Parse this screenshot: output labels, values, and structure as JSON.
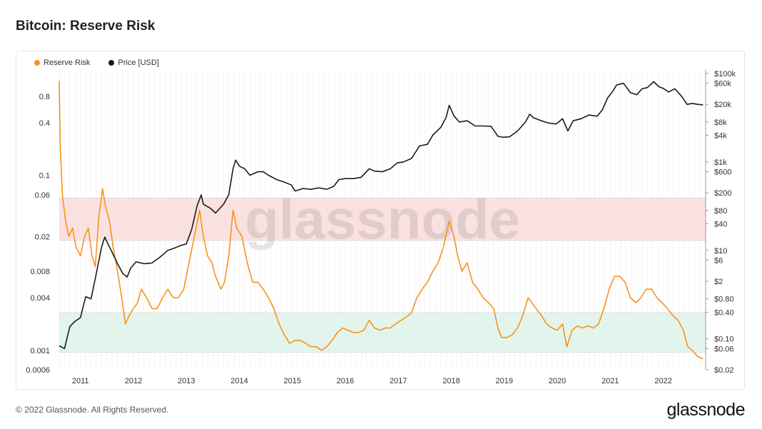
{
  "title": "Bitcoin: Reserve Risk",
  "footer": {
    "copyright": "© 2022 Glassnode. All Rights Reserved.",
    "logo_text": "glassnode"
  },
  "watermark": "glassnode",
  "colors": {
    "reserve_risk": "#f7931a",
    "price": "#1b1b1b",
    "red_band": "#fbe0e0",
    "green_band": "#e2f5ec",
    "grid": "#ececec"
  },
  "chart_data": {
    "type": "line",
    "title": "Bitcoin: Reserve Risk",
    "xlim": [
      2010.6,
      2022.8
    ],
    "x_ticks": [
      {
        "label": "2011",
        "x": 2011
      },
      {
        "label": "2012",
        "x": 2012
      },
      {
        "label": "2013",
        "x": 2013
      },
      {
        "label": "2014",
        "x": 2014
      },
      {
        "label": "2015",
        "x": 2015
      },
      {
        "label": "2016",
        "x": 2016
      },
      {
        "label": "2017",
        "x": 2017
      },
      {
        "label": "2018",
        "x": 2018
      },
      {
        "label": "2019",
        "x": 2019
      },
      {
        "label": "2020",
        "x": 2020
      },
      {
        "label": "2021",
        "x": 2021
      },
      {
        "label": "2022",
        "x": 2022
      }
    ],
    "left_axis": {
      "scale": "log",
      "ylim": [
        0.0006,
        1.6
      ],
      "ticks": [
        {
          "label": "0.8",
          "v": 0.8
        },
        {
          "label": "0.4",
          "v": 0.4
        },
        {
          "label": "0.1",
          "v": 0.1
        },
        {
          "label": "0.06",
          "v": 0.06
        },
        {
          "label": "0.02",
          "v": 0.02
        },
        {
          "label": "0.008",
          "v": 0.008
        },
        {
          "label": "0.004",
          "v": 0.004
        },
        {
          "label": "0.001",
          "v": 0.001
        },
        {
          "label": "0.0006",
          "v": 0.0006
        }
      ]
    },
    "right_axis": {
      "scale": "log",
      "ylim": [
        0.02,
        120000
      ],
      "ticks": [
        {
          "label": "$100k",
          "v": 100000
        },
        {
          "label": "$60k",
          "v": 60000
        },
        {
          "label": "$20k",
          "v": 20000
        },
        {
          "label": "$8k",
          "v": 8000
        },
        {
          "label": "$4k",
          "v": 4000
        },
        {
          "label": "$1k",
          "v": 1000
        },
        {
          "label": "$600",
          "v": 600
        },
        {
          "label": "$200",
          "v": 200
        },
        {
          "label": "$80",
          "v": 80
        },
        {
          "label": "$40",
          "v": 40
        },
        {
          "label": "$10",
          "v": 10
        },
        {
          "label": "$6",
          "v": 6
        },
        {
          "label": "$2",
          "v": 2
        },
        {
          "label": "$0.80",
          "v": 0.8
        },
        {
          "label": "$0.40",
          "v": 0.4
        },
        {
          "label": "$0.10",
          "v": 0.1
        },
        {
          "label": "$0.06",
          "v": 0.06
        },
        {
          "label": "$0.02",
          "v": 0.02
        }
      ]
    },
    "bands": [
      {
        "from": 0.018,
        "to": 0.055,
        "color": "red_band"
      },
      {
        "from": 0.00095,
        "to": 0.0027,
        "color": "green_band"
      }
    ],
    "legend": {
      "placement": "top-left"
    },
    "grid": true,
    "series": [
      {
        "name": "Reserve Risk",
        "axis": "left",
        "color": "#f7931a",
        "points": [
          [
            2010.6,
            1.2
          ],
          [
            2010.62,
            0.2
          ],
          [
            2010.66,
            0.06
          ],
          [
            2010.72,
            0.03
          ],
          [
            2010.78,
            0.02
          ],
          [
            2010.85,
            0.025
          ],
          [
            2010.92,
            0.015
          ],
          [
            2011.0,
            0.012
          ],
          [
            2011.08,
            0.02
          ],
          [
            2011.15,
            0.025
          ],
          [
            2011.22,
            0.012
          ],
          [
            2011.28,
            0.009
          ],
          [
            2011.35,
            0.035
          ],
          [
            2011.42,
            0.07
          ],
          [
            2011.47,
            0.045
          ],
          [
            2011.55,
            0.03
          ],
          [
            2011.62,
            0.015
          ],
          [
            2011.7,
            0.008
          ],
          [
            2011.78,
            0.004
          ],
          [
            2011.85,
            0.002
          ],
          [
            2011.92,
            0.0025
          ],
          [
            2012.0,
            0.003
          ],
          [
            2012.08,
            0.0035
          ],
          [
            2012.15,
            0.005
          ],
          [
            2012.25,
            0.004
          ],
          [
            2012.35,
            0.003
          ],
          [
            2012.45,
            0.003
          ],
          [
            2012.55,
            0.004
          ],
          [
            2012.65,
            0.005
          ],
          [
            2012.75,
            0.004
          ],
          [
            2012.85,
            0.004
          ],
          [
            2012.95,
            0.005
          ],
          [
            2013.05,
            0.01
          ],
          [
            2013.15,
            0.02
          ],
          [
            2013.25,
            0.04
          ],
          [
            2013.32,
            0.02
          ],
          [
            2013.4,
            0.012
          ],
          [
            2013.48,
            0.01
          ],
          [
            2013.55,
            0.007
          ],
          [
            2013.65,
            0.005
          ],
          [
            2013.72,
            0.006
          ],
          [
            2013.8,
            0.012
          ],
          [
            2013.88,
            0.04
          ],
          [
            2013.95,
            0.025
          ],
          [
            2014.05,
            0.02
          ],
          [
            2014.15,
            0.01
          ],
          [
            2014.25,
            0.006
          ],
          [
            2014.35,
            0.006
          ],
          [
            2014.45,
            0.005
          ],
          [
            2014.55,
            0.004
          ],
          [
            2014.65,
            0.003
          ],
          [
            2014.75,
            0.002
          ],
          [
            2014.85,
            0.0015
          ],
          [
            2014.95,
            0.0012
          ],
          [
            2015.05,
            0.0013
          ],
          [
            2015.15,
            0.0013
          ],
          [
            2015.25,
            0.0012
          ],
          [
            2015.35,
            0.0011
          ],
          [
            2015.45,
            0.0011
          ],
          [
            2015.55,
            0.001
          ],
          [
            2015.65,
            0.0011
          ],
          [
            2015.75,
            0.0013
          ],
          [
            2015.85,
            0.0016
          ],
          [
            2015.95,
            0.0018
          ],
          [
            2016.05,
            0.0017
          ],
          [
            2016.15,
            0.0016
          ],
          [
            2016.25,
            0.0016
          ],
          [
            2016.35,
            0.0017
          ],
          [
            2016.45,
            0.0022
          ],
          [
            2016.55,
            0.0018
          ],
          [
            2016.65,
            0.0017
          ],
          [
            2016.75,
            0.0018
          ],
          [
            2016.85,
            0.0018
          ],
          [
            2016.95,
            0.002
          ],
          [
            2017.05,
            0.0022
          ],
          [
            2017.15,
            0.0024
          ],
          [
            2017.25,
            0.0027
          ],
          [
            2017.35,
            0.004
          ],
          [
            2017.45,
            0.005
          ],
          [
            2017.55,
            0.006
          ],
          [
            2017.65,
            0.008
          ],
          [
            2017.75,
            0.01
          ],
          [
            2017.85,
            0.015
          ],
          [
            2017.96,
            0.03
          ],
          [
            2018.05,
            0.02
          ],
          [
            2018.12,
            0.012
          ],
          [
            2018.2,
            0.008
          ],
          [
            2018.3,
            0.01
          ],
          [
            2018.4,
            0.006
          ],
          [
            2018.5,
            0.005
          ],
          [
            2018.6,
            0.004
          ],
          [
            2018.7,
            0.0035
          ],
          [
            2018.8,
            0.003
          ],
          [
            2018.88,
            0.0018
          ],
          [
            2018.95,
            0.0014
          ],
          [
            2019.05,
            0.0014
          ],
          [
            2019.15,
            0.0015
          ],
          [
            2019.25,
            0.0018
          ],
          [
            2019.35,
            0.0025
          ],
          [
            2019.45,
            0.004
          ],
          [
            2019.52,
            0.0035
          ],
          [
            2019.6,
            0.003
          ],
          [
            2019.7,
            0.0025
          ],
          [
            2019.8,
            0.002
          ],
          [
            2019.9,
            0.0018
          ],
          [
            2020.0,
            0.0017
          ],
          [
            2020.1,
            0.002
          ],
          [
            2020.18,
            0.0011
          ],
          [
            2020.28,
            0.0017
          ],
          [
            2020.38,
            0.0019
          ],
          [
            2020.48,
            0.0018
          ],
          [
            2020.58,
            0.0019
          ],
          [
            2020.68,
            0.0018
          ],
          [
            2020.78,
            0.002
          ],
          [
            2020.88,
            0.003
          ],
          [
            2020.98,
            0.005
          ],
          [
            2021.08,
            0.007
          ],
          [
            2021.18,
            0.007
          ],
          [
            2021.28,
            0.006
          ],
          [
            2021.38,
            0.004
          ],
          [
            2021.48,
            0.0035
          ],
          [
            2021.58,
            0.004
          ],
          [
            2021.68,
            0.005
          ],
          [
            2021.78,
            0.005
          ],
          [
            2021.88,
            0.004
          ],
          [
            2021.98,
            0.0035
          ],
          [
            2022.08,
            0.003
          ],
          [
            2022.18,
            0.0025
          ],
          [
            2022.28,
            0.0022
          ],
          [
            2022.38,
            0.0017
          ],
          [
            2022.46,
            0.0011
          ],
          [
            2022.55,
            0.001
          ],
          [
            2022.65,
            0.00085
          ],
          [
            2022.75,
            0.0008
          ]
        ]
      },
      {
        "name": "Price [USD]",
        "axis": "right",
        "color": "#1b1b1b",
        "points": [
          [
            2010.6,
            0.07
          ],
          [
            2010.7,
            0.06
          ],
          [
            2010.8,
            0.19
          ],
          [
            2010.9,
            0.25
          ],
          [
            2011.0,
            0.3
          ],
          [
            2011.1,
            0.9
          ],
          [
            2011.2,
            0.8
          ],
          [
            2011.3,
            3
          ],
          [
            2011.4,
            12
          ],
          [
            2011.46,
            20
          ],
          [
            2011.52,
            14
          ],
          [
            2011.6,
            9
          ],
          [
            2011.7,
            5
          ],
          [
            2011.8,
            3
          ],
          [
            2011.88,
            2.5
          ],
          [
            2011.95,
            4
          ],
          [
            2012.05,
            5.5
          ],
          [
            2012.2,
            5
          ],
          [
            2012.35,
            5.2
          ],
          [
            2012.5,
            7
          ],
          [
            2012.65,
            10
          ],
          [
            2012.75,
            11
          ],
          [
            2012.9,
            13
          ],
          [
            2013.0,
            14
          ],
          [
            2013.1,
            30
          ],
          [
            2013.2,
            100
          ],
          [
            2013.28,
            180
          ],
          [
            2013.32,
            110
          ],
          [
            2013.45,
            90
          ],
          [
            2013.55,
            70
          ],
          [
            2013.7,
            110
          ],
          [
            2013.8,
            180
          ],
          [
            2013.88,
            700
          ],
          [
            2013.93,
            1100
          ],
          [
            2014.0,
            800
          ],
          [
            2014.1,
            700
          ],
          [
            2014.2,
            500
          ],
          [
            2014.35,
            600
          ],
          [
            2014.45,
            600
          ],
          [
            2014.55,
            500
          ],
          [
            2014.7,
            400
          ],
          [
            2014.85,
            350
          ],
          [
            2014.98,
            300
          ],
          [
            2015.05,
            220
          ],
          [
            2015.2,
            250
          ],
          [
            2015.35,
            240
          ],
          [
            2015.5,
            260
          ],
          [
            2015.65,
            240
          ],
          [
            2015.78,
            280
          ],
          [
            2015.88,
            400
          ],
          [
            2016.0,
            420
          ],
          [
            2016.15,
            420
          ],
          [
            2016.3,
            450
          ],
          [
            2016.45,
            700
          ],
          [
            2016.55,
            620
          ],
          [
            2016.7,
            600
          ],
          [
            2016.85,
            700
          ],
          [
            2016.98,
            950
          ],
          [
            2017.1,
            1000
          ],
          [
            2017.25,
            1200
          ],
          [
            2017.4,
            2300
          ],
          [
            2017.55,
            2500
          ],
          [
            2017.65,
            4000
          ],
          [
            2017.8,
            6000
          ],
          [
            2017.9,
            10000
          ],
          [
            2017.96,
            19000
          ],
          [
            2018.05,
            11000
          ],
          [
            2018.15,
            8000
          ],
          [
            2018.3,
            8500
          ],
          [
            2018.45,
            6500
          ],
          [
            2018.6,
            6500
          ],
          [
            2018.75,
            6400
          ],
          [
            2018.88,
            3800
          ],
          [
            2018.98,
            3600
          ],
          [
            2019.1,
            3700
          ],
          [
            2019.25,
            5000
          ],
          [
            2019.4,
            8000
          ],
          [
            2019.48,
            12000
          ],
          [
            2019.55,
            10000
          ],
          [
            2019.7,
            8500
          ],
          [
            2019.85,
            7500
          ],
          [
            2019.98,
            7200
          ],
          [
            2020.1,
            9500
          ],
          [
            2020.2,
            5000
          ],
          [
            2020.3,
            8500
          ],
          [
            2020.45,
            9500
          ],
          [
            2020.6,
            11500
          ],
          [
            2020.75,
            10800
          ],
          [
            2020.85,
            15000
          ],
          [
            2020.95,
            28000
          ],
          [
            2021.05,
            40000
          ],
          [
            2021.12,
            55000
          ],
          [
            2021.25,
            60000
          ],
          [
            2021.38,
            37000
          ],
          [
            2021.5,
            33000
          ],
          [
            2021.6,
            45000
          ],
          [
            2021.7,
            48000
          ],
          [
            2021.82,
            65000
          ],
          [
            2021.92,
            50000
          ],
          [
            2022.0,
            46000
          ],
          [
            2022.1,
            38000
          ],
          [
            2022.22,
            45000
          ],
          [
            2022.35,
            30000
          ],
          [
            2022.45,
            20000
          ],
          [
            2022.55,
            21000
          ],
          [
            2022.65,
            20000
          ],
          [
            2022.75,
            19500
          ]
        ]
      }
    ]
  }
}
